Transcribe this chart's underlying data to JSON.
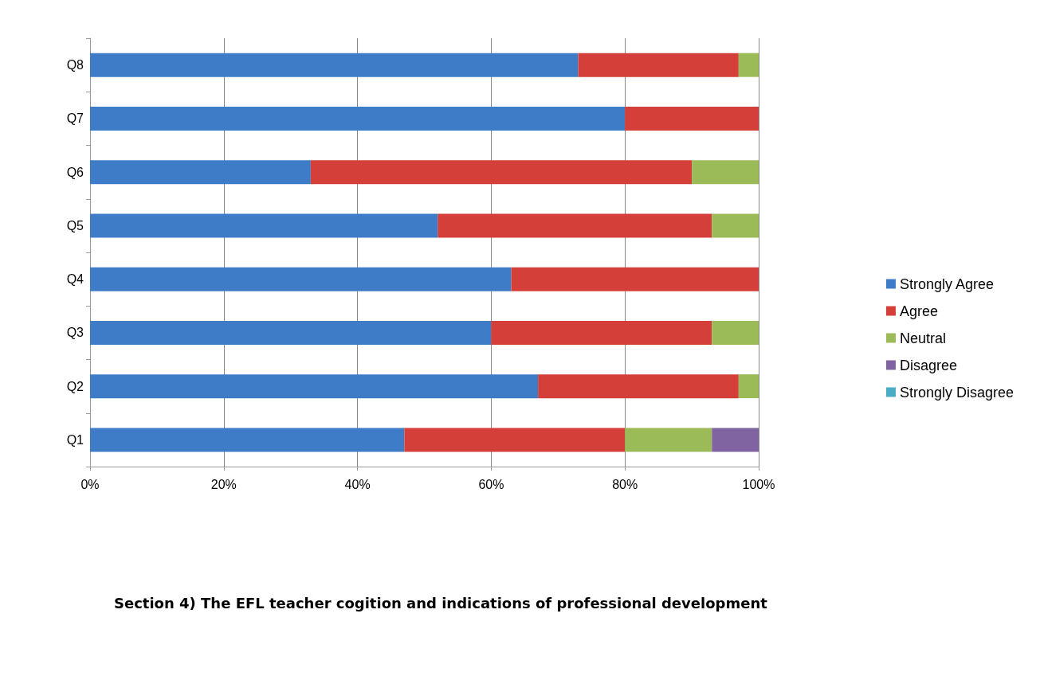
{
  "chart_data": {
    "type": "bar",
    "orientation": "horizontal",
    "stacked": true,
    "title": "Section 4) The EFL teacher cogition and indications of professional development",
    "categories": [
      "Q8",
      "Q7",
      "Q6",
      "Q5",
      "Q4",
      "Q3",
      "Q2",
      "Q1"
    ],
    "series": [
      {
        "name": "Strongly Agree",
        "color": "#3f7cc8",
        "values": [
          73,
          80,
          33,
          52,
          63,
          60,
          67,
          47
        ]
      },
      {
        "name": "Agree",
        "color": "#d43f3a",
        "values": [
          24,
          20,
          57,
          41,
          37,
          33,
          30,
          33
        ]
      },
      {
        "name": "Neutral",
        "color": "#9bbb59",
        "values": [
          3,
          0,
          10,
          7,
          0,
          7,
          3,
          13
        ]
      },
      {
        "name": "Disagree",
        "color": "#8064a2",
        "values": [
          0,
          0,
          0,
          0,
          0,
          0,
          0,
          7
        ]
      },
      {
        "name": "Strongly Disagree",
        "color": "#4bacc6",
        "values": [
          0,
          0,
          0,
          0,
          0,
          0,
          0,
          0
        ]
      }
    ],
    "xlim": [
      0,
      100
    ],
    "xticks": [
      {
        "value": 0,
        "label": "0%"
      },
      {
        "value": 20,
        "label": "20%"
      },
      {
        "value": 40,
        "label": "40%"
      },
      {
        "value": 60,
        "label": "60%"
      },
      {
        "value": 80,
        "label": "80%"
      },
      {
        "value": 100,
        "label": "100%"
      }
    ],
    "grid": "x",
    "legend": "right"
  }
}
